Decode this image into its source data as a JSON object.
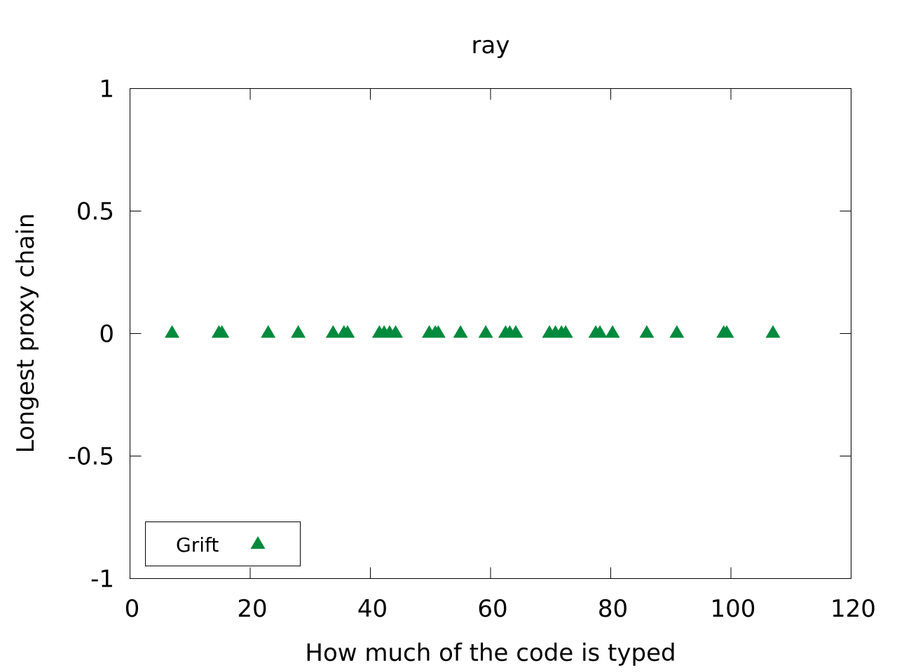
{
  "chart_data": {
    "type": "scatter",
    "title": "ray",
    "xlabel": "How much of the code is typed",
    "ylabel": "Longest proxy chain",
    "xlim": [
      0,
      120
    ],
    "ylim": [
      -1,
      1
    ],
    "xticks": [
      "0",
      "20",
      "40",
      "60",
      "80",
      "100",
      "120"
    ],
    "yticks": [
      "1",
      "0.5",
      "0",
      "-0.5",
      "-1"
    ],
    "grid": false,
    "legend_position": "bottom-left",
    "series": [
      {
        "name": "Grift",
        "color": "#008a3d",
        "marker": "triangle",
        "x": [
          7,
          14.8,
          15.3,
          23,
          28,
          33.8,
          35.6,
          36.2,
          41.5,
          42.3,
          43.2,
          44.2,
          49.8,
          50.8,
          51.3,
          55,
          59.2,
          62.5,
          63.2,
          64.2,
          69.8,
          70.8,
          71.8,
          72.5,
          77.5,
          78.2,
          80.3,
          86,
          91,
          98.8,
          99.3,
          107
        ],
        "y": [
          0,
          0,
          0,
          0,
          0,
          0,
          0,
          0,
          0,
          0,
          0,
          0,
          0,
          0,
          0,
          0,
          0,
          0,
          0,
          0,
          0,
          0,
          0,
          0,
          0,
          0,
          0,
          0,
          0,
          0,
          0,
          0
        ]
      }
    ]
  }
}
